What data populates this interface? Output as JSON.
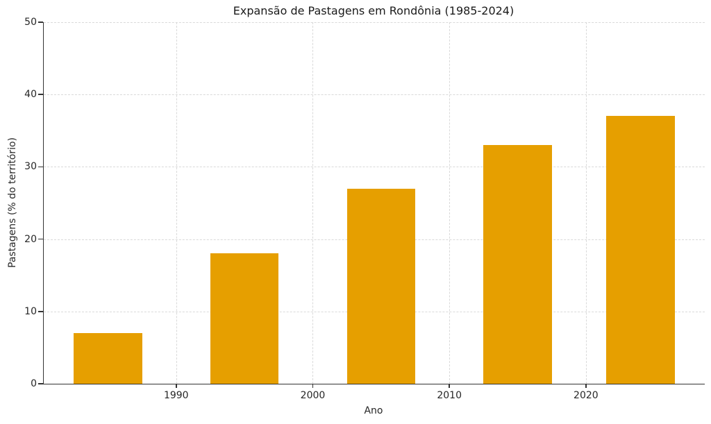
{
  "chart_data": {
    "type": "bar",
    "title": "Expansão de Pastagens em Rondônia (1985-2024)",
    "xlabel": "Ano",
    "ylabel": "Pastagens (% do território)",
    "x": [
      1985,
      1995,
      2005,
      2015,
      2024
    ],
    "values": [
      7,
      18,
      27,
      33,
      37
    ],
    "bar_width_years": 5,
    "xlim": [
      1980.3,
      2028.7
    ],
    "ylim": [
      0,
      50
    ],
    "xticks": [
      1990,
      2000,
      2010,
      2020
    ],
    "yticks": [
      0,
      10,
      20,
      30,
      40,
      50
    ],
    "grid": true,
    "grid_style": "dashed",
    "legend": "none",
    "bar_color": "#E69F00",
    "grid_color": "#d9d9d9",
    "axis_color": "#333333",
    "text_color": "#262626",
    "background_color": "#ffffff"
  }
}
